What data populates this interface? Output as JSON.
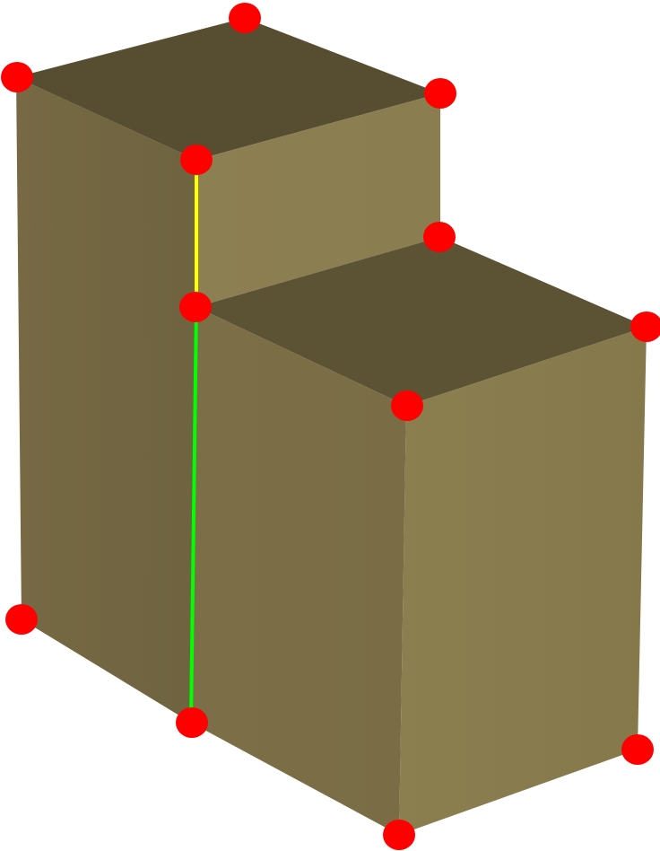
{
  "colors": {
    "background": "#ffffff",
    "top_face": "#5b5032",
    "front_face_light": "#8a7e50",
    "front_face_dark": "#7a6d45",
    "side_face": "#756843",
    "vertex": "#ff0000",
    "edge_upper_highlight": "#ffff00",
    "edge_lower_highlight": "#00ff00"
  },
  "shape": "stepped-block",
  "vertex_marker": "red-dot",
  "highlighted_edges": [
    {
      "name": "upper-edge",
      "color": "yellow"
    },
    {
      "name": "lower-edge",
      "color": "green"
    }
  ]
}
